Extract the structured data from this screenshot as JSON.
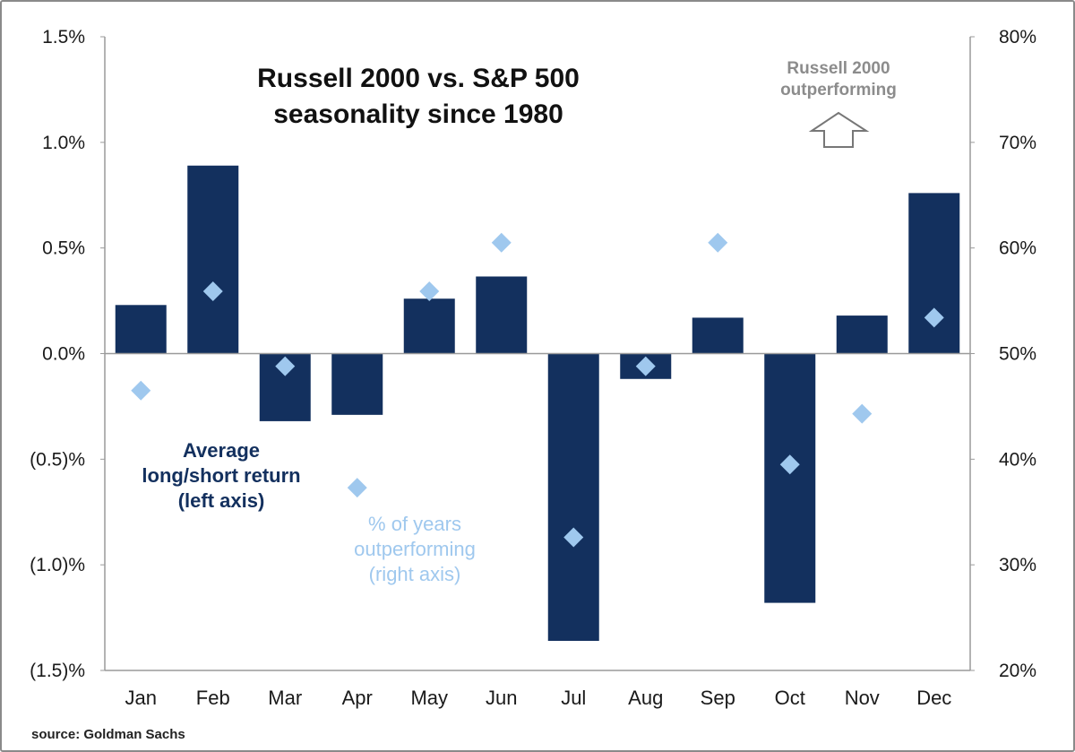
{
  "chart_data": {
    "type": "bar",
    "title": [
      "Russell 2000 vs. S&P 500",
      "seasonality since 1980"
    ],
    "categories": [
      "Jan",
      "Feb",
      "Mar",
      "Apr",
      "May",
      "Jun",
      "Jul",
      "Aug",
      "Sep",
      "Oct",
      "Nov",
      "Dec"
    ],
    "series": [
      {
        "name": "Average long/short return (left axis)",
        "kind": "bar",
        "axis": "left",
        "color": "#13305e",
        "values": [
          0.23,
          0.89,
          -0.32,
          -0.29,
          0.26,
          0.365,
          -1.36,
          -0.12,
          0.17,
          -1.18,
          0.18,
          0.76
        ]
      },
      {
        "name": "% of years outperforming (right axis)",
        "kind": "diamond",
        "axis": "right",
        "color": "#9fc8ee",
        "values": [
          46.5,
          55.9,
          48.8,
          37.3,
          55.9,
          60.5,
          32.6,
          48.8,
          60.5,
          39.5,
          44.3,
          53.4
        ]
      }
    ],
    "left_axis": {
      "range": [
        -1.5,
        1.5
      ],
      "ticks": [
        "1.5%",
        "1.0%",
        "0.5%",
        "0.0%",
        "(0.5)%",
        "(1.0)%",
        "(1.5)%"
      ]
    },
    "right_axis": {
      "range": [
        20,
        80
      ],
      "ticks": [
        "80%",
        "70%",
        "60%",
        "50%",
        "40%",
        "30%",
        "20%"
      ]
    },
    "grid": false,
    "annotations": {
      "bar_label": [
        "Average",
        "long/short return",
        "(left axis)"
      ],
      "diamond_label": [
        "% of years",
        "outperforming",
        "(right axis)"
      ],
      "arrow_label": [
        "Russell 2000",
        "outperforming"
      ]
    },
    "source": "source: Goldman Sachs"
  }
}
